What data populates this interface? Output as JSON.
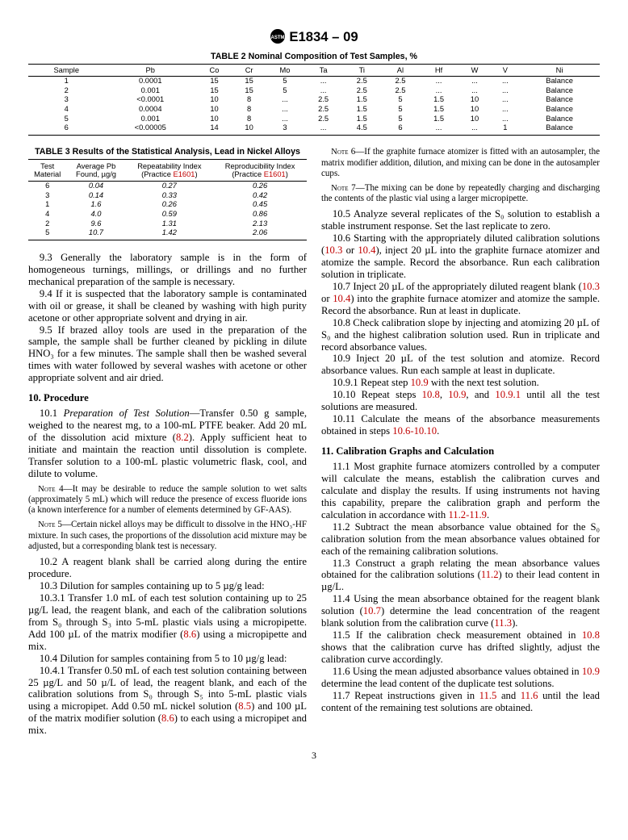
{
  "standard_id": "E1834 – 09",
  "page_number": "3",
  "table2": {
    "caption": "TABLE 2  Nominal Composition of Test Samples, %",
    "headers": [
      "Sample",
      "Pb",
      "Co",
      "Cr",
      "Mo",
      "Ta",
      "Ti",
      "Al",
      "Hf",
      "W",
      "V",
      "Ni"
    ],
    "rows": [
      [
        "1",
        "0.0001",
        "15",
        "15",
        "5",
        "...",
        "2.5",
        "2.5",
        "...",
        "...",
        "...",
        "Balance"
      ],
      [
        "2",
        "0.001",
        "15",
        "15",
        "5",
        "...",
        "2.5",
        "2.5",
        "...",
        "...",
        "...",
        "Balance"
      ],
      [
        "3",
        "<0.0001",
        "10",
        "8",
        "...",
        "2.5",
        "1.5",
        "5",
        "1.5",
        "10",
        "...",
        "Balance"
      ],
      [
        "4",
        "0.0004",
        "10",
        "8",
        "...",
        "2.5",
        "1.5",
        "5",
        "1.5",
        "10",
        "...",
        "Balance"
      ],
      [
        "5",
        "0.001",
        "10",
        "8",
        "...",
        "2.5",
        "1.5",
        "5",
        "1.5",
        "10",
        "...",
        "Balance"
      ],
      [
        "6",
        "<0.00005",
        "14",
        "10",
        "3",
        "...",
        "4.5",
        "6",
        "...",
        "...",
        "1",
        "Balance"
      ]
    ]
  },
  "table3": {
    "caption": "TABLE 3  Results of the Statistical Analysis, Lead in Nickel Alloys",
    "headers": [
      "Test Material",
      "Average Pb Found, µg/g",
      "Repeatability Index (Practice ",
      "Reproducibility Index (Practice "
    ],
    "practice_ref": "E1601",
    "rows": [
      [
        "6",
        "0.04",
        "0.27",
        "0.26"
      ],
      [
        "3",
        "0.14",
        "0.33",
        "0.42"
      ],
      [
        "1",
        "1.6",
        "0.26",
        "0.45"
      ],
      [
        "4",
        "4.0",
        "0.59",
        "0.86"
      ],
      [
        "2",
        "9.6",
        "1.31",
        "2.13"
      ],
      [
        "5",
        "10.7",
        "1.42",
        "2.06"
      ]
    ]
  },
  "body": {
    "p9_3": "9.3 Generally the laboratory sample is in the form of homogeneous turnings, millings, or drillings and no further mechanical preparation of the sample is necessary.",
    "p9_4": "9.4 If it is suspected that the laboratory sample is contaminated with oil or grease, it shall be cleaned by washing with high purity acetone or other appropriate solvent and drying in air.",
    "p9_5": "9.5 If brazed alloy tools are used in the preparation of the sample, the sample shall be further cleaned by pickling in dilute HNO₃ for a few minutes. The sample shall then be washed several times with water followed by several washes with acetone or other appropriate solvent and air dried.",
    "h10": "10.  Procedure",
    "p10_1a": "Preparation of Test Solution",
    "p10_1b": "—Transfer 0.50 g sample, weighed to the nearest mg, to a 100-mL PTFE beaker. Add 20 mL of the dissolution acid mixture (",
    "r8_2": "8.2",
    "p10_1c": "). Apply sufficient heat to initiate and maintain the reaction until dissolution is complete. Transfer solution to a 100-mL plastic volumetric flask, cool, and dilute to volume.",
    "note4": " 4—It may be desirable to reduce the sample solution to wet salts (approximately 5 mL) which will reduce the presence of excess fluoride ions (a known interference for a number of elements determined by GF-AAS).",
    "note5": " 5—Certain nickel alloys may be difficult to dissolve in the HNO₃-HF mixture. In such cases, the proportions of the dissolution acid mixture may be adjusted, but a corresponding blank test is necessary.",
    "p10_2": "10.2 A reagent blank shall be carried along during the entire procedure.",
    "p10_3": "10.3 Dilution for samples containing up to 5 µg/g lead:",
    "p10_3_1a": "10.3.1 Transfer 1.0 mL of each test solution containing up to 25 µg/L lead, the reagent blank, and each of the calibration solutions from S₀ through S₃ into 5-mL plastic vials using a micropipette. Add 100 µL of the matrix modifier (",
    "r8_6": "8.6",
    "p10_3_1b": ") using a micropipette and mix.",
    "p10_4": "10.4 Dilution for samples containing from 5 to 10 µg/g lead:",
    "p10_4_1a": "10.4.1 Transfer 0.50 mL of each test solution containing between 25 µg/L and 50 µ/L of lead, the reagent blank, and each of the calibration solutions from S₀ through S₅ into 5-mL plastic vials using a micropipet. Add 0.50 mL nickel solution (",
    "r8_5": "8.5",
    "p10_4_1b": ") and 100 µL of the matrix modifier solution (",
    "p10_4_1c": ") to each using a micropipet and mix.",
    "note6": " 6—If the graphite furnace atomizer is fitted with an autosampler, the matrix modifier addition, dilution, and mixing can be done in the autosampler cups.",
    "note7": " 7—The mixing can be done by repeatedly charging and discharging the contents of the plastic vial using a larger micropipette.",
    "p10_5": "10.5 Analyze several replicates of the S₀ solution to establish a stable instrument response. Set the last replicate to zero.",
    "p10_6a": "10.6 Starting with the appropriately diluted calibration solutions (",
    "r10_3": "10.3",
    "or": " or ",
    "r10_4": "10.4",
    "p10_6b": "), inject 20 µL into the graphite furnace atomizer and atomize the sample. Record the absorbance. Run each calibration solution in triplicate.",
    "p10_7a": "10.7 Inject 20 µL of the appropriately diluted reagent blank (",
    "p10_7b": ") into the graphite furnace atomizer and atomize the sample. Record the absorbance. Run at least in duplicate.",
    "p10_8": "10.8 Check calibration slope by injecting and atomizing 20 µL of S₀ and the highest calibration solution used. Run in triplicate and record absorbance values.",
    "p10_9": "10.9 Inject 20 µL of the test solution and atomize. Record absorbance values. Run each sample at least in duplicate.",
    "p10_9_1a": "10.9.1 Repeat step ",
    "r10_9": "10.9",
    "p10_9_1b": " with the next test solution.",
    "p10_10a": "10.10 Repeat steps ",
    "r10_8": "10.8",
    "comma": ", ",
    "and": ", and ",
    "r10_9_1": "10.9.1",
    "p10_10b": " until all the test solutions are measured.",
    "p10_11a": "10.11 Calculate the means of the absorbance measurements obtained in steps ",
    "r10_6_10_10": "10.6-10.10",
    "dot": ".",
    "h11": "11.  Calibration Graphs and Calculation",
    "p11_1a": "11.1 Most graphite furnace atomizers controlled by a computer will calculate the means, establish the calibration curves and calculate and display the results. If using instruments not having this capability, prepare the calibration graph and perform the calculation in accordance with ",
    "r11_2_11_9": "11.2-11.9",
    "p11_2": "11.2 Subtract the mean absorbance value obtained for the S₀ calibration solution from the mean absorbance values obtained for each of the remaining calibration solutions.",
    "p11_3a": "11.3 Construct a graph relating the mean absorbance values obtained for the calibration solutions (",
    "r11_2": "11.2",
    "p11_3b": ") to their lead content in µg/L.",
    "p11_4a": "11.4 Using the mean absorbance obtained for the reagent blank solution (",
    "r10_7": "10.7",
    "p11_4b": ") determine the lead concentration of the reagent blank solution from the calibration curve (",
    "r11_3": "11.3",
    "p11_4c": ").",
    "p11_5a": "11.5 If the calibration check measurement obtained in ",
    "p11_5b": " shows that the calibration curve has drifted slightly, adjust the calibration curve accordingly.",
    "p11_6a": "11.6 Using the mean adjusted absorbance values obtained in ",
    "p11_6b": " determine the lead content of the duplicate test solutions.",
    "p11_7a": "11.7 Repeat instructions given in ",
    "r11_5": "11.5",
    "r11_6": "11.6",
    "p11_7b": " until the lead content of the remaining test solutions are obtained."
  }
}
